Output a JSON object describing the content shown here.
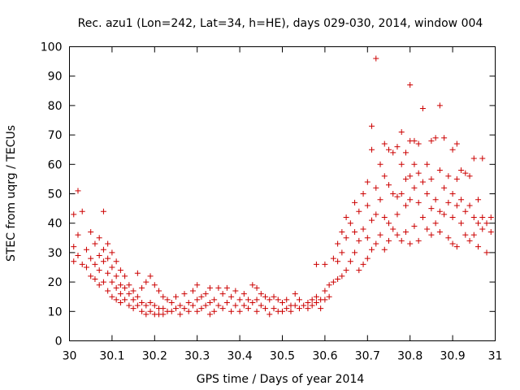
{
  "chart_data": {
    "type": "scatter",
    "title": "Rec. azu1 (Lon=242, Lat=34, h=HE), days 029-030, 2014, window 004",
    "xlabel": "GPS time / Days of year 2014",
    "ylabel": "STEC from uqrg / TECUs",
    "xlim": [
      30,
      31
    ],
    "ylim": [
      0,
      100
    ],
    "xticks": [
      30,
      30.1,
      30.2,
      30.3,
      30.4,
      30.5,
      30.6,
      30.7,
      30.8,
      30.9,
      31
    ],
    "xtick_labels": [
      "30",
      "30.1",
      "30.2",
      "30.3",
      "30.4",
      "30.5",
      "30.6",
      "30.7",
      "30.8",
      "30.9",
      "31"
    ],
    "yticks": [
      0,
      10,
      20,
      30,
      40,
      50,
      60,
      70,
      80,
      90,
      100
    ],
    "ytick_labels": [
      "0",
      "10",
      "20",
      "30",
      "40",
      "50",
      "60",
      "70",
      "80",
      "90",
      "100"
    ],
    "marker": "+",
    "color": "#cc0000",
    "series": [
      {
        "name": "STEC",
        "points": [
          [
            30.01,
            43
          ],
          [
            30.01,
            32
          ],
          [
            30.01,
            27
          ],
          [
            30.02,
            51
          ],
          [
            30.02,
            36
          ],
          [
            30.02,
            29
          ],
          [
            30.03,
            26
          ],
          [
            30.03,
            44
          ],
          [
            30.04,
            31
          ],
          [
            30.04,
            25
          ],
          [
            30.05,
            37
          ],
          [
            30.05,
            28
          ],
          [
            30.05,
            22
          ],
          [
            30.06,
            33
          ],
          [
            30.06,
            26
          ],
          [
            30.06,
            21
          ],
          [
            30.07,
            35
          ],
          [
            30.07,
            29
          ],
          [
            30.07,
            24
          ],
          [
            30.07,
            19
          ],
          [
            30.08,
            44
          ],
          [
            30.08,
            31
          ],
          [
            30.08,
            27
          ],
          [
            30.08,
            20
          ],
          [
            30.09,
            33
          ],
          [
            30.09,
            28
          ],
          [
            30.09,
            23
          ],
          [
            30.09,
            17
          ],
          [
            30.1,
            30
          ],
          [
            30.1,
            25
          ],
          [
            30.1,
            20
          ],
          [
            30.1,
            15
          ],
          [
            30.11,
            27
          ],
          [
            30.11,
            22
          ],
          [
            30.11,
            18
          ],
          [
            30.11,
            14
          ],
          [
            30.12,
            24
          ],
          [
            30.12,
            19
          ],
          [
            30.12,
            16
          ],
          [
            30.12,
            13
          ],
          [
            30.13,
            22
          ],
          [
            30.13,
            18
          ],
          [
            30.13,
            14
          ],
          [
            30.14,
            19
          ],
          [
            30.14,
            16
          ],
          [
            30.14,
            12
          ],
          [
            30.15,
            17
          ],
          [
            30.15,
            14
          ],
          [
            30.15,
            11
          ],
          [
            30.16,
            23
          ],
          [
            30.16,
            15
          ],
          [
            30.16,
            12
          ],
          [
            30.17,
            18
          ],
          [
            30.17,
            13
          ],
          [
            30.17,
            10
          ],
          [
            30.18,
            20
          ],
          [
            30.18,
            12
          ],
          [
            30.18,
            9
          ],
          [
            30.19,
            22
          ],
          [
            30.19,
            13
          ],
          [
            30.19,
            10
          ],
          [
            30.2,
            19
          ],
          [
            30.2,
            12
          ],
          [
            30.2,
            9
          ],
          [
            30.21,
            17
          ],
          [
            30.21,
            11
          ],
          [
            30.21,
            9
          ],
          [
            30.22,
            15
          ],
          [
            30.22,
            11
          ],
          [
            30.22,
            9
          ],
          [
            30.23,
            14
          ],
          [
            30.23,
            10
          ],
          [
            30.24,
            13
          ],
          [
            30.24,
            10
          ],
          [
            30.25,
            15
          ],
          [
            30.25,
            11
          ],
          [
            30.26,
            12
          ],
          [
            30.26,
            9
          ],
          [
            30.27,
            16
          ],
          [
            30.27,
            11
          ],
          [
            30.28,
            13
          ],
          [
            30.28,
            10
          ],
          [
            30.29,
            17
          ],
          [
            30.29,
            12
          ],
          [
            30.3,
            19
          ],
          [
            30.3,
            14
          ],
          [
            30.3,
            10
          ],
          [
            30.31,
            15
          ],
          [
            30.31,
            11
          ],
          [
            30.32,
            16
          ],
          [
            30.32,
            12
          ],
          [
            30.33,
            18
          ],
          [
            30.33,
            13
          ],
          [
            30.33,
            9
          ],
          [
            30.34,
            14
          ],
          [
            30.34,
            10
          ],
          [
            30.35,
            18
          ],
          [
            30.35,
            12
          ],
          [
            30.36,
            16
          ],
          [
            30.36,
            11
          ],
          [
            30.37,
            18
          ],
          [
            30.37,
            13
          ],
          [
            30.38,
            15
          ],
          [
            30.38,
            10
          ],
          [
            30.39,
            17
          ],
          [
            30.39,
            12
          ],
          [
            30.4,
            14
          ],
          [
            30.4,
            10
          ],
          [
            30.41,
            16
          ],
          [
            30.41,
            12
          ],
          [
            30.42,
            14
          ],
          [
            30.42,
            11
          ],
          [
            30.43,
            19
          ],
          [
            30.43,
            13
          ],
          [
            30.44,
            18
          ],
          [
            30.44,
            14
          ],
          [
            30.44,
            10
          ],
          [
            30.45,
            16
          ],
          [
            30.45,
            12
          ],
          [
            30.46,
            15
          ],
          [
            30.46,
            11
          ],
          [
            30.47,
            14
          ],
          [
            30.47,
            9
          ],
          [
            30.48,
            15
          ],
          [
            30.48,
            11
          ],
          [
            30.49,
            14
          ],
          [
            30.49,
            10
          ],
          [
            30.5,
            13
          ],
          [
            30.5,
            10
          ],
          [
            30.51,
            14
          ],
          [
            30.51,
            11
          ],
          [
            30.52,
            12
          ],
          [
            30.52,
            10
          ],
          [
            30.53,
            16
          ],
          [
            30.53,
            12
          ],
          [
            30.54,
            14
          ],
          [
            30.54,
            11
          ],
          [
            30.55,
            12
          ],
          [
            30.56,
            13
          ],
          [
            30.56,
            11
          ],
          [
            30.57,
            14
          ],
          [
            30.57,
            12
          ],
          [
            30.58,
            26
          ],
          [
            30.58,
            15
          ],
          [
            30.58,
            13
          ],
          [
            30.59,
            14
          ],
          [
            30.59,
            11
          ],
          [
            30.6,
            26
          ],
          [
            30.6,
            17
          ],
          [
            30.6,
            14
          ],
          [
            30.61,
            19
          ],
          [
            30.61,
            15
          ],
          [
            30.62,
            28
          ],
          [
            30.62,
            20
          ],
          [
            30.63,
            33
          ],
          [
            30.63,
            27
          ],
          [
            30.63,
            21
          ],
          [
            30.64,
            37
          ],
          [
            30.64,
            30
          ],
          [
            30.64,
            22
          ],
          [
            30.65,
            42
          ],
          [
            30.65,
            35
          ],
          [
            30.65,
            24
          ],
          [
            30.66,
            40
          ],
          [
            30.66,
            27
          ],
          [
            30.67,
            47
          ],
          [
            30.67,
            37
          ],
          [
            30.67,
            30
          ],
          [
            30.68,
            44
          ],
          [
            30.68,
            34
          ],
          [
            30.68,
            24
          ],
          [
            30.69,
            50
          ],
          [
            30.69,
            38
          ],
          [
            30.69,
            26
          ],
          [
            30.7,
            54
          ],
          [
            30.7,
            46
          ],
          [
            30.7,
            35
          ],
          [
            30.7,
            28
          ],
          [
            30.71,
            73
          ],
          [
            30.71,
            65
          ],
          [
            30.71,
            41
          ],
          [
            30.71,
            31
          ],
          [
            30.72,
            96
          ],
          [
            30.72,
            52
          ],
          [
            30.72,
            43
          ],
          [
            30.72,
            33
          ],
          [
            30.73,
            60
          ],
          [
            30.73,
            48
          ],
          [
            30.73,
            36
          ],
          [
            30.74,
            67
          ],
          [
            30.74,
            56
          ],
          [
            30.74,
            42
          ],
          [
            30.74,
            31
          ],
          [
            30.75,
            65
          ],
          [
            30.75,
            53
          ],
          [
            30.75,
            40
          ],
          [
            30.75,
            34
          ],
          [
            30.76,
            64
          ],
          [
            30.76,
            50
          ],
          [
            30.76,
            38
          ],
          [
            30.77,
            66
          ],
          [
            30.77,
            49
          ],
          [
            30.77,
            43
          ],
          [
            30.77,
            36
          ],
          [
            30.78,
            71
          ],
          [
            30.78,
            60
          ],
          [
            30.78,
            50
          ],
          [
            30.78,
            34
          ],
          [
            30.79,
            64
          ],
          [
            30.79,
            55
          ],
          [
            30.79,
            46
          ],
          [
            30.79,
            37
          ],
          [
            30.8,
            87
          ],
          [
            30.8,
            68
          ],
          [
            30.8,
            56
          ],
          [
            30.8,
            48
          ],
          [
            30.8,
            33
          ],
          [
            30.81,
            68
          ],
          [
            30.81,
            60
          ],
          [
            30.81,
            52
          ],
          [
            30.81,
            39
          ],
          [
            30.82,
            67
          ],
          [
            30.82,
            57
          ],
          [
            30.82,
            47
          ],
          [
            30.82,
            34
          ],
          [
            30.83,
            79
          ],
          [
            30.83,
            54
          ],
          [
            30.83,
            42
          ],
          [
            30.84,
            60
          ],
          [
            30.84,
            50
          ],
          [
            30.84,
            38
          ],
          [
            30.85,
            68
          ],
          [
            30.85,
            55
          ],
          [
            30.85,
            45
          ],
          [
            30.85,
            36
          ],
          [
            30.86,
            69
          ],
          [
            30.86,
            48
          ],
          [
            30.86,
            40
          ],
          [
            30.87,
            80
          ],
          [
            30.87,
            58
          ],
          [
            30.87,
            44
          ],
          [
            30.87,
            37
          ],
          [
            30.88,
            69
          ],
          [
            30.88,
            52
          ],
          [
            30.88,
            43
          ],
          [
            30.89,
            56
          ],
          [
            30.89,
            47
          ],
          [
            30.89,
            35
          ],
          [
            30.9,
            65
          ],
          [
            30.9,
            50
          ],
          [
            30.9,
            42
          ],
          [
            30.9,
            33
          ],
          [
            30.91,
            67
          ],
          [
            30.91,
            55
          ],
          [
            30.91,
            46
          ],
          [
            30.91,
            32
          ],
          [
            30.92,
            58
          ],
          [
            30.92,
            48
          ],
          [
            30.92,
            40
          ],
          [
            30.93,
            57
          ],
          [
            30.93,
            44
          ],
          [
            30.93,
            36
          ],
          [
            30.94,
            56
          ],
          [
            30.94,
            46
          ],
          [
            30.94,
            34
          ],
          [
            30.95,
            62
          ],
          [
            30.95,
            42
          ],
          [
            30.95,
            36
          ],
          [
            30.96,
            48
          ],
          [
            30.96,
            40
          ],
          [
            30.96,
            32
          ],
          [
            30.97,
            62
          ],
          [
            30.97,
            42
          ],
          [
            30.97,
            38
          ],
          [
            30.98,
            40
          ],
          [
            30.98,
            30
          ],
          [
            30.99,
            42
          ],
          [
            30.99,
            37
          ]
        ]
      }
    ]
  }
}
